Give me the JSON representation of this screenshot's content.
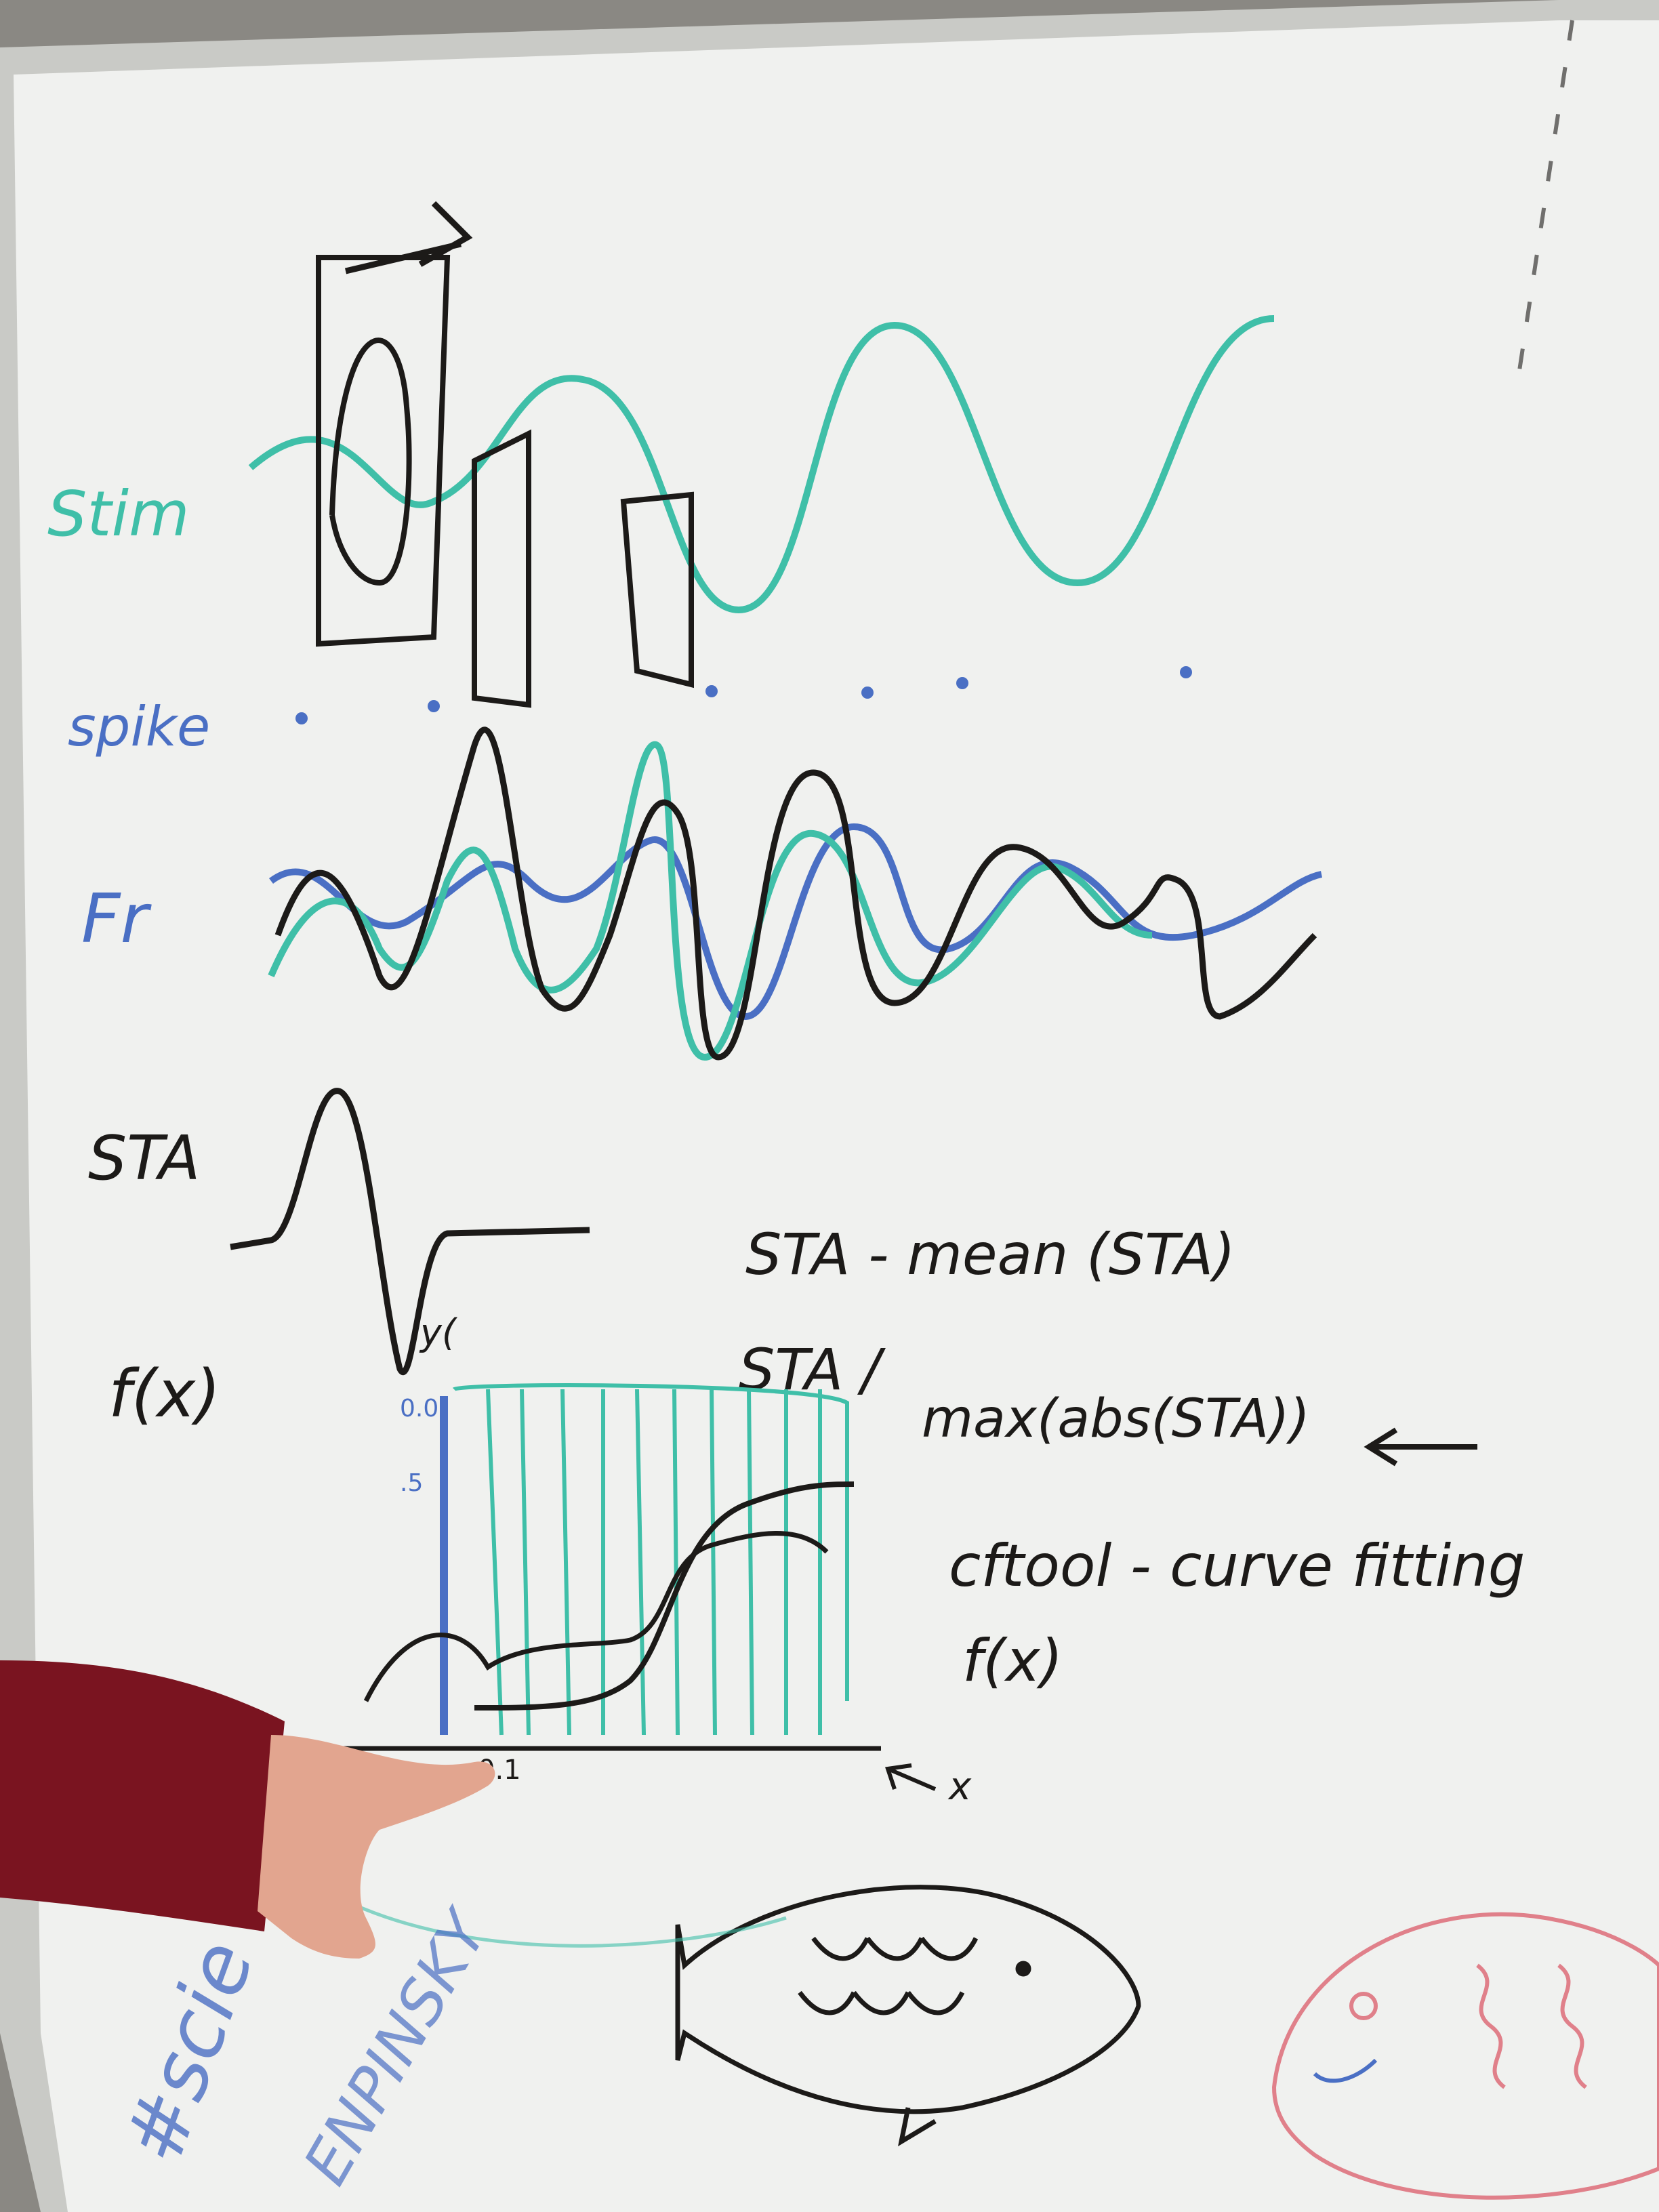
{
  "labels": {
    "stim": "Stim",
    "spike": "spike",
    "fr": "Fr",
    "sta": "STA",
    "fx": "f(x)",
    "ylabel": "y(",
    "xlabel": "x"
  },
  "notes": {
    "line1": "STA - mean (STA)",
    "line2": "STA /",
    "line3": "max(abs(STA))",
    "line4": "cftool - curve fitting",
    "line5": "f(x)"
  },
  "axis_ticks": {
    "y_top": "0.0",
    "y_mid": ".5",
    "x_origin": "0.1"
  },
  "graffiti": {
    "text1": "#scie",
    "text2": "ENPINSKY"
  },
  "colors": {
    "wall": "#8a8883",
    "board": "#f0f1ef",
    "frame": "#c9cac6",
    "ink_black": "#1c1a18",
    "ink_teal": "#3fbfa8",
    "ink_blue": "#4a6fc4",
    "ink_pink": "#e0808a",
    "sleeve": "#7a1420",
    "hand": "#e2a58f"
  },
  "icons": {
    "fish_black": "fish-doodle",
    "fish_pink": "fish-doodle",
    "pointing_hand": "pointing-hand"
  }
}
